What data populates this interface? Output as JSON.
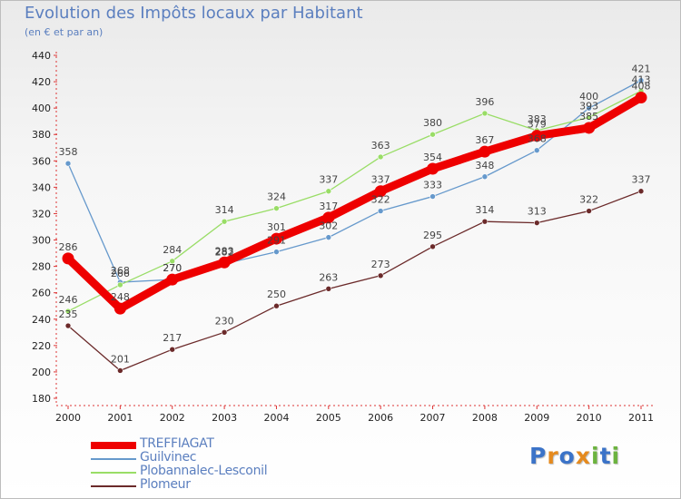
{
  "header": {
    "title": "Evolution des Impôts locaux par Habitant",
    "subtitle": "(en € et par an)"
  },
  "chart_data": {
    "type": "line",
    "title": "Evolution des Impôts locaux par Habitant",
    "subtitle": "(en € et par an)",
    "xlabel": "",
    "ylabel": "",
    "categories": [
      "2000",
      "2001",
      "2002",
      "2003",
      "2004",
      "2005",
      "2006",
      "2007",
      "2008",
      "2009",
      "2010",
      "2011"
    ],
    "ylim": [
      180,
      440
    ],
    "yticks": [
      180,
      200,
      220,
      240,
      260,
      280,
      300,
      320,
      340,
      360,
      380,
      400,
      420,
      440
    ],
    "grid": false,
    "legend_position": "bottom-left",
    "series": [
      {
        "name": "TREFFIAGAT",
        "color": "#ee0000",
        "values": [
          286,
          248,
          270,
          283,
          301,
          317,
          337,
          354,
          367,
          379,
          385,
          408
        ]
      },
      {
        "name": "Guilvinec",
        "color": "#6699cc",
        "values": [
          358,
          268,
          270,
          282,
          291,
          302,
          322,
          333,
          348,
          368,
          400,
          421
        ]
      },
      {
        "name": "Plobannalec-Lesconil",
        "color": "#99dd66",
        "values": [
          246,
          266,
          284,
          314,
          324,
          337,
          363,
          380,
          396,
          383,
          393,
          413
        ]
      },
      {
        "name": "Plomeur",
        "color": "#6b2a2a",
        "values": [
          235,
          201,
          217,
          230,
          250,
          263,
          273,
          295,
          314,
          313,
          322,
          337
        ]
      }
    ]
  },
  "logo": {
    "text": "Proxiti",
    "letters": [
      {
        "char": "P",
        "color": "#3b73c8"
      },
      {
        "char": "r",
        "color": "#e58a1e"
      },
      {
        "char": "o",
        "color": "#3b73c8"
      },
      {
        "char": "x",
        "color": "#e58a1e"
      },
      {
        "char": "i",
        "color": "#6cb33f"
      },
      {
        "char": "t",
        "color": "#3b73c8"
      },
      {
        "char": "i",
        "color": "#6cb33f"
      }
    ]
  }
}
